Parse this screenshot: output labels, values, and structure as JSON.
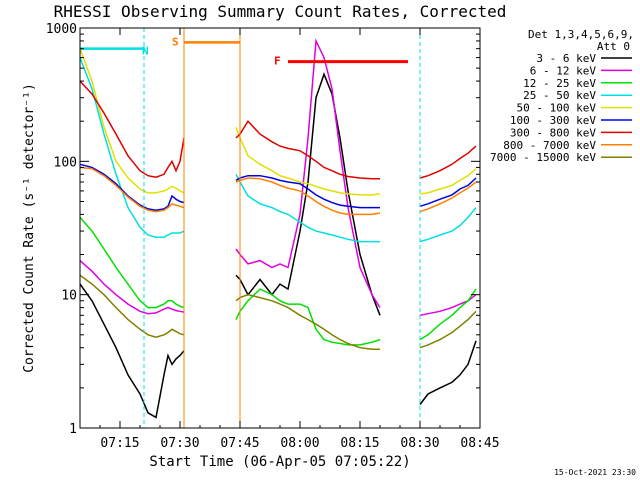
{
  "chart_data": {
    "type": "line",
    "title": "RHESSI Observing Summary Count Rates, Corrected",
    "xlabel": "Start Time (06-Apr-05 07:05:22)",
    "ylabel": "Corrected Count Rate (s⁻¹ detector⁻¹)",
    "y_scale": "log",
    "ylim": [
      1,
      1000
    ],
    "xlim_minutes": [
      0,
      100
    ],
    "x_ticks": [
      {
        "label": "07:15",
        "min": 10
      },
      {
        "label": "07:30",
        "min": 25
      },
      {
        "label": "07:45",
        "min": 40
      },
      {
        "label": "08:00",
        "min": 55
      },
      {
        "label": "08:15",
        "min": 70
      },
      {
        "label": "08:30",
        "min": 85
      },
      {
        "label": "08:45",
        "min": 100
      }
    ],
    "y_ticks": [
      {
        "label": "1",
        "value": 1
      },
      {
        "label": "10",
        "value": 10
      },
      {
        "label": "100",
        "value": 100
      },
      {
        "label": "1000",
        "value": 1000
      }
    ],
    "legend_header": [
      "Det 1,3,4,5,6,9,",
      "Att 0"
    ],
    "legend_position": "right",
    "footer_timestamp": "15-Oct-2021 23:30",
    "data_gaps_minutes": [
      [
        26,
        39
      ],
      [
        75,
        85
      ]
    ],
    "series": [
      {
        "name": "3 - 6 keV",
        "color": "#000000",
        "x": [
          0,
          3,
          6,
          9,
          12,
          15,
          17,
          19,
          21,
          22,
          23,
          24,
          25,
          26,
          39,
          40,
          42,
          45,
          48,
          50,
          52,
          55,
          57,
          59,
          61,
          63,
          65,
          67,
          70,
          73,
          75,
          85,
          87,
          90,
          93,
          95,
          97,
          99
        ],
        "y": [
          12,
          9,
          6,
          4,
          2.5,
          1.8,
          1.3,
          1.2,
          2.5,
          3.5,
          3,
          3.3,
          3.5,
          3.8,
          14,
          13,
          10,
          13,
          10,
          12,
          11,
          30,
          70,
          300,
          450,
          320,
          150,
          60,
          20,
          10,
          7,
          1.5,
          1.8,
          2,
          2.2,
          2.5,
          3,
          4.5
        ]
      },
      {
        "name": "6 - 12 keV",
        "color": "#e000e0",
        "x": [
          0,
          3,
          6,
          9,
          12,
          15,
          17,
          19,
          21,
          22,
          23,
          24,
          25,
          26,
          39,
          40,
          42,
          45,
          48,
          50,
          52,
          55,
          57,
          59,
          61,
          63,
          65,
          67,
          70,
          73,
          75,
          85,
          87,
          90,
          93,
          95,
          97,
          99
        ],
        "y": [
          18,
          15,
          12,
          10,
          8.5,
          7.5,
          7.2,
          7.3,
          7.8,
          8,
          7.8,
          7.6,
          7.5,
          7.4,
          22,
          20,
          17,
          18,
          16,
          17,
          16,
          40,
          150,
          800,
          600,
          350,
          120,
          45,
          16,
          10,
          8,
          7,
          7.2,
          7.5,
          8,
          8.5,
          9,
          10
        ]
      },
      {
        "name": "12 - 25 keV",
        "color": "#00e000",
        "x": [
          0,
          3,
          6,
          9,
          12,
          15,
          17,
          19,
          21,
          22,
          23,
          24,
          25,
          26,
          39,
          40,
          42,
          45,
          48,
          50,
          52,
          55,
          57,
          59,
          61,
          63,
          65,
          67,
          70,
          73,
          75,
          85,
          87,
          90,
          93,
          95,
          97,
          99
        ],
        "y": [
          38,
          30,
          22,
          16,
          12,
          9,
          8,
          8,
          8.5,
          9,
          9,
          8.5,
          8.2,
          8,
          6.5,
          7.5,
          9,
          11,
          10,
          9,
          8.5,
          8.5,
          8,
          5.5,
          4.6,
          4.4,
          4.3,
          4.2,
          4.2,
          4.4,
          4.6,
          4.6,
          5,
          6,
          7,
          8,
          9,
          11
        ]
      },
      {
        "name": "25 - 50 keV",
        "color": "#00e0e0",
        "x": [
          0,
          3,
          6,
          9,
          12,
          15,
          17,
          19,
          21,
          22,
          23,
          24,
          25,
          26,
          39,
          40,
          42,
          45,
          48,
          50,
          52,
          55,
          57,
          59,
          61,
          63,
          65,
          67,
          70,
          73,
          75,
          85,
          87,
          90,
          93,
          95,
          97,
          99
        ],
        "y": [
          600,
          350,
          160,
          80,
          45,
          32,
          28,
          27,
          27,
          28,
          29,
          29,
          29,
          30,
          80,
          70,
          55,
          48,
          45,
          42,
          40,
          35,
          32,
          30,
          29,
          28,
          27,
          26,
          25,
          25,
          25,
          25,
          26,
          28,
          30,
          33,
          38,
          45
        ]
      },
      {
        "name": "50 - 100 keV",
        "color": "#e0e000",
        "x": [
          0,
          3,
          6,
          9,
          12,
          15,
          17,
          19,
          21,
          22,
          23,
          24,
          25,
          26,
          39,
          40,
          42,
          45,
          48,
          50,
          52,
          55,
          57,
          59,
          61,
          63,
          65,
          67,
          70,
          73,
          75,
          85,
          87,
          90,
          93,
          95,
          97,
          99
        ],
        "y": [
          700,
          400,
          180,
          100,
          75,
          62,
          58,
          58,
          60,
          62,
          65,
          63,
          60,
          58,
          180,
          150,
          110,
          95,
          85,
          78,
          75,
          70,
          68,
          65,
          62,
          60,
          58,
          57,
          56,
          56,
          57,
          57,
          58,
          62,
          66,
          72,
          78,
          88
        ]
      },
      {
        "name": "100 - 300 keV",
        "color": "#0000e0",
        "x": [
          0,
          3,
          6,
          9,
          12,
          15,
          17,
          19,
          21,
          22,
          23,
          24,
          25,
          26,
          39,
          40,
          42,
          45,
          48,
          50,
          52,
          55,
          57,
          59,
          61,
          63,
          65,
          67,
          70,
          73,
          75,
          85,
          87,
          90,
          93,
          95,
          97,
          99
        ],
        "y": [
          95,
          90,
          80,
          68,
          55,
          47,
          44,
          43,
          44,
          46,
          55,
          52,
          50,
          49,
          72,
          75,
          78,
          78,
          75,
          72,
          70,
          68,
          62,
          56,
          52,
          49,
          47,
          46,
          45,
          45,
          45,
          46,
          48,
          52,
          56,
          62,
          66,
          75
        ]
      },
      {
        "name": "300 - 800 keV",
        "color": "#e00000",
        "x": [
          0,
          3,
          6,
          9,
          12,
          15,
          17,
          19,
          21,
          22,
          23,
          24,
          25,
          26,
          39,
          40,
          42,
          45,
          48,
          50,
          52,
          55,
          57,
          59,
          61,
          63,
          65,
          67,
          70,
          73,
          75,
          85,
          87,
          90,
          93,
          95,
          97,
          99
        ],
        "y": [
          400,
          320,
          230,
          160,
          110,
          85,
          78,
          76,
          80,
          90,
          100,
          85,
          100,
          150,
          150,
          160,
          200,
          160,
          140,
          130,
          125,
          120,
          110,
          100,
          90,
          85,
          80,
          77,
          75,
          74,
          74,
          75,
          78,
          85,
          95,
          105,
          115,
          130
        ]
      },
      {
        "name": "800 - 7000 keV",
        "color": "#ff8000",
        "x": [
          0,
          3,
          6,
          9,
          12,
          15,
          17,
          19,
          21,
          22,
          23,
          24,
          25,
          26,
          39,
          40,
          42,
          45,
          48,
          50,
          52,
          55,
          57,
          59,
          61,
          63,
          65,
          67,
          70,
          73,
          75,
          85,
          87,
          90,
          93,
          95,
          97,
          99
        ],
        "y": [
          90,
          88,
          78,
          66,
          54,
          46,
          43,
          42,
          43,
          45,
          48,
          47,
          46,
          45,
          70,
          72,
          75,
          74,
          70,
          66,
          63,
          60,
          55,
          50,
          46,
          43,
          41,
          40,
          40,
          40,
          41,
          42,
          44,
          48,
          53,
          58,
          63,
          70
        ]
      },
      {
        "name": "7000 - 15000 keV",
        "color": "#808000",
        "x": [
          0,
          3,
          6,
          9,
          12,
          15,
          17,
          19,
          21,
          22,
          23,
          24,
          25,
          26,
          39,
          40,
          42,
          45,
          48,
          50,
          52,
          55,
          57,
          59,
          61,
          63,
          65,
          67,
          70,
          73,
          75,
          85,
          87,
          90,
          93,
          95,
          97,
          99
        ],
        "y": [
          14,
          12,
          10,
          8,
          6.5,
          5.5,
          5,
          4.8,
          5,
          5.2,
          5.5,
          5.3,
          5.1,
          5,
          9,
          9.5,
          10,
          9.5,
          9,
          8.5,
          8,
          7,
          6.5,
          6,
          5.5,
          5,
          4.6,
          4.3,
          4,
          3.9,
          3.9,
          4,
          4.2,
          4.6,
          5.2,
          5.8,
          6.5,
          7.5
        ]
      }
    ],
    "annotations": [
      {
        "label": "N",
        "color": "#00e0e0",
        "type": "night",
        "bar_min": [
          0,
          16
        ],
        "level": 700,
        "boundary_min": [
          16,
          85,
          100
        ]
      },
      {
        "label": "S",
        "color": "#ff8000",
        "type": "saa",
        "bar_min": [
          26,
          40
        ],
        "level": 780,
        "boundary_min": [
          26,
          40
        ]
      },
      {
        "label": "F",
        "color": "#ff0000",
        "type": "flare",
        "bar_min": [
          52,
          82
        ],
        "level": 560,
        "boundary_min": []
      }
    ]
  }
}
